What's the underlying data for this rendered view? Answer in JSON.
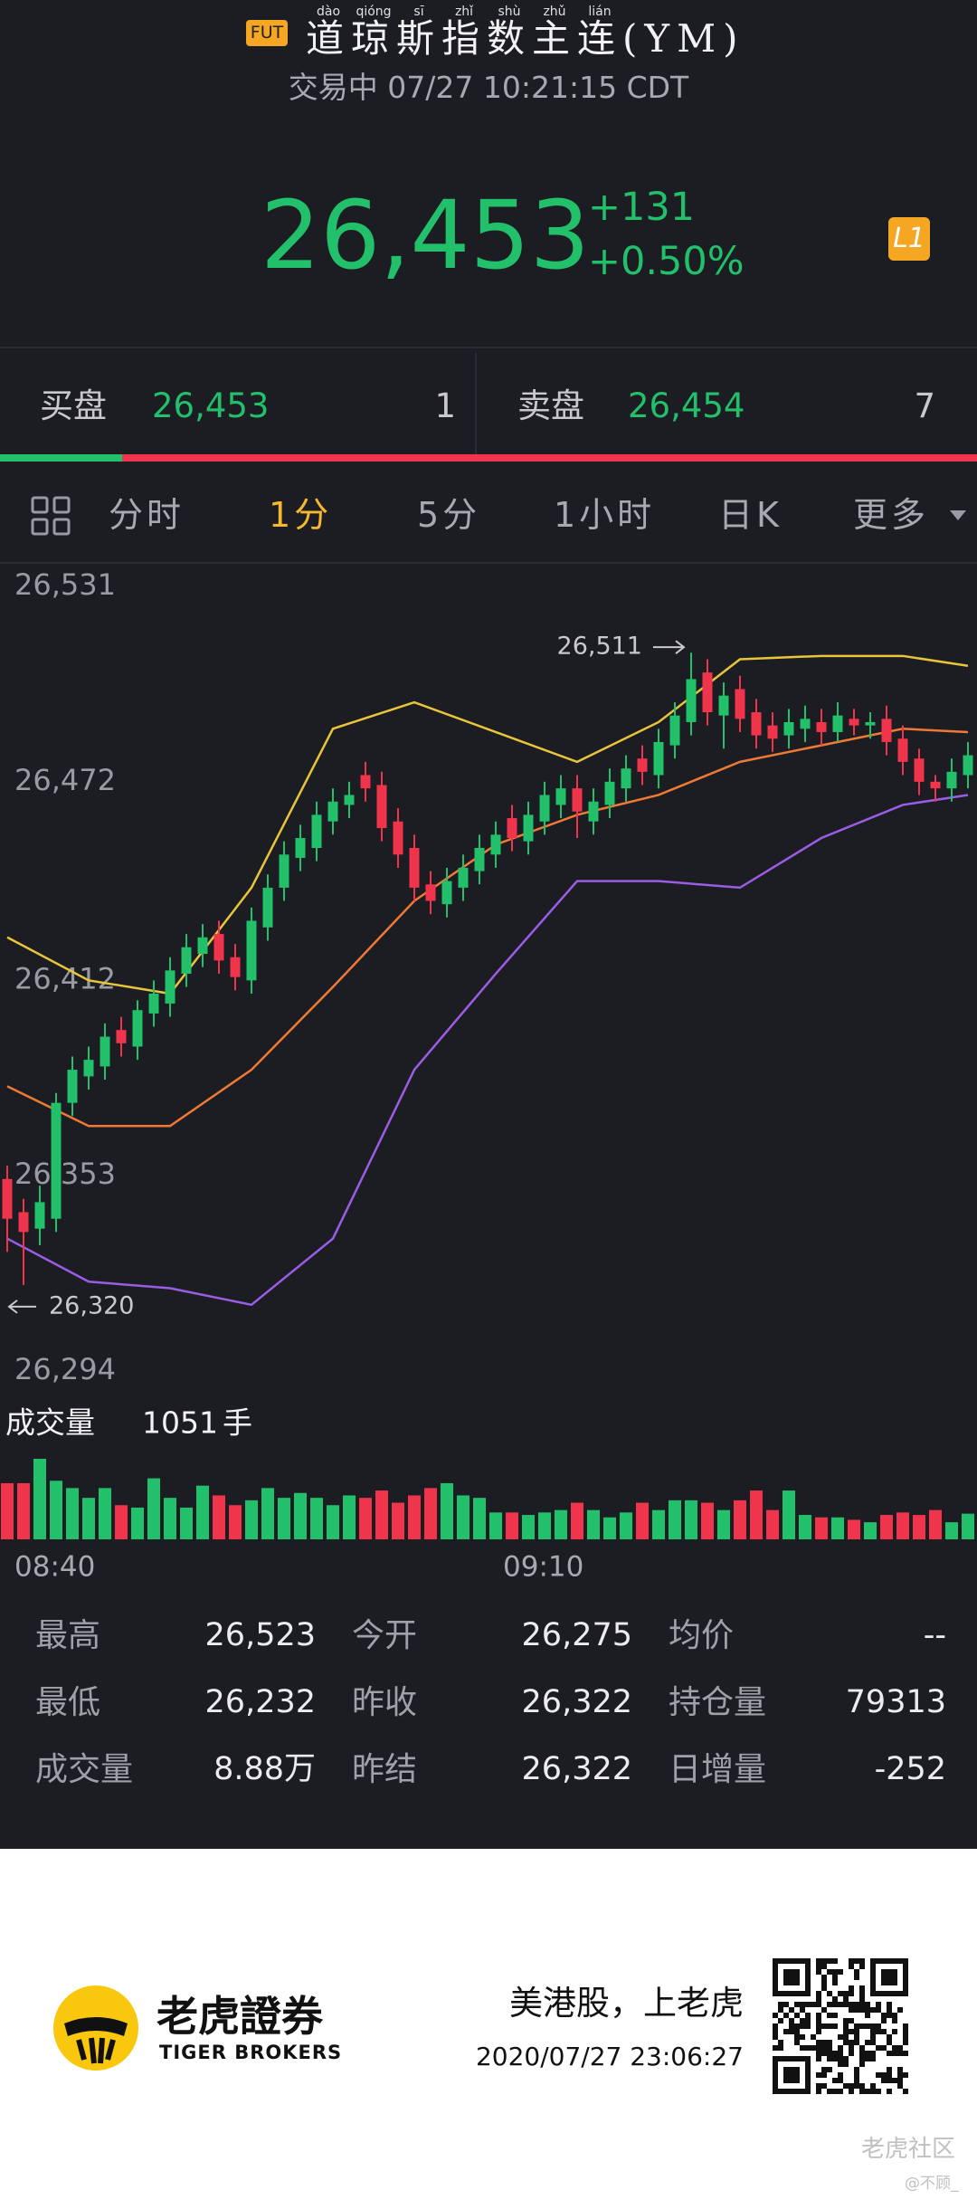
{
  "header": {
    "badge": "FUT",
    "title": "道琼斯指数主连(YM)",
    "pinyin": [
      "dào",
      "qióng",
      "sī",
      "zhǐ",
      "shù",
      "zhǔ",
      "lián"
    ],
    "status": "交易中 07/27 10:21:15 CDT"
  },
  "quote": {
    "price": "26,453",
    "change": "+131",
    "change_pct": "+0.50%",
    "level": "L1"
  },
  "book": {
    "bid_label": "买盘",
    "bid": "26,453",
    "bid_size": 1,
    "ask_label": "卖盘",
    "ask": "26,454",
    "ask_size": 7
  },
  "tabs": [
    "分时",
    "1分",
    "5分",
    "1小时",
    "日K",
    "更多"
  ],
  "active_tab": 1,
  "chart_data": {
    "type": "candlestick",
    "categories": [
      "08:40",
      null,
      null,
      null,
      null,
      null,
      null,
      null,
      null,
      null,
      null,
      null,
      null,
      null,
      null,
      null,
      null,
      null,
      null,
      null,
      null,
      null,
      null,
      null,
      null,
      null,
      null,
      null,
      null,
      null,
      "09:10",
      null,
      null,
      null,
      null,
      null,
      null,
      null,
      null,
      null,
      null,
      null,
      null,
      null,
      null,
      null,
      null,
      null,
      null,
      null,
      null,
      null,
      null,
      null,
      null,
      null,
      null,
      null,
      null,
      null
    ],
    "open": [
      26352,
      26342,
      26337,
      26340,
      26375,
      26383,
      26386,
      26397,
      26392,
      26402,
      26405,
      26414,
      26420,
      26426,
      26419,
      26412,
      26428,
      26440,
      26449,
      26452,
      26460,
      26465,
      26474,
      26471,
      26460,
      26452,
      26441,
      26435,
      26440,
      26445,
      26450,
      26461,
      26454,
      26460,
      26465,
      26470,
      26460,
      26465,
      26470,
      26479,
      26474,
      26483,
      26490,
      26505,
      26492,
      26500,
      26493,
      26489,
      26486,
      26488,
      26490,
      26487,
      26491,
      26489,
      26491,
      26485,
      26479,
      26472,
      26470,
      26474
    ],
    "high": [
      26356,
      26346,
      26350,
      26378,
      26389,
      26392,
      26399,
      26401,
      26406,
      26412,
      26419,
      26426,
      26429,
      26430,
      26423,
      26434,
      26444,
      26454,
      26459,
      26466,
      26470,
      26472,
      26478,
      26475,
      26464,
      26456,
      26445,
      26446,
      26450,
      26456,
      26460,
      26465,
      26466,
      26472,
      26474,
      26474,
      26470,
      26476,
      26480,
      26483,
      26488,
      26496,
      26511,
      26509,
      26502,
      26504,
      26497,
      26493,
      26494,
      26495,
      26494,
      26496,
      26494,
      26493,
      26495,
      26489,
      26482,
      26474,
      26479,
      26484
    ],
    "low": [
      26330,
      26320,
      26332,
      26336,
      26371,
      26379,
      26382,
      26389,
      26388,
      26398,
      26401,
      26410,
      26416,
      26414,
      26409,
      26408,
      26424,
      26436,
      26445,
      26448,
      26456,
      26461,
      26466,
      26454,
      26446,
      26436,
      26432,
      26431,
      26436,
      26441,
      26446,
      26451,
      26450,
      26456,
      26461,
      26455,
      26456,
      26461,
      26466,
      26471,
      26470,
      26479,
      26486,
      26489,
      26482,
      26487,
      26482,
      26481,
      26482,
      26484,
      26483,
      26484,
      26486,
      26485,
      26480,
      26474,
      26468,
      26466,
      26466,
      26470
    ],
    "close": [
      26340,
      26336,
      26345,
      26375,
      26385,
      26388,
      26395,
      26393,
      26403,
      26408,
      26415,
      26422,
      26425,
      26418,
      26413,
      26430,
      26440,
      26450,
      26455,
      26462,
      26466,
      26468,
      26470,
      26458,
      26450,
      26440,
      26436,
      26442,
      26446,
      26452,
      26456,
      26455,
      26462,
      26468,
      26470,
      26463,
      26466,
      26472,
      26476,
      26475,
      26484,
      26492,
      26503,
      26493,
      26498,
      26491,
      26486,
      26485,
      26490,
      26491,
      26487,
      26492,
      26489,
      26490,
      26484,
      26478,
      26472,
      26470,
      26475,
      26480
    ],
    "up_color": "#22c06a",
    "down_color": "#f0344c",
    "ylim": [
      26294,
      26531
    ],
    "yticks": [
      {
        "value": 26531,
        "label": "26,531"
      },
      {
        "value": 26472,
        "label": "26,472"
      },
      {
        "value": 26412,
        "label": "26,412"
      },
      {
        "value": 26353,
        "label": "26,353"
      },
      {
        "value": 26294,
        "label": "26,294"
      }
    ],
    "band_x": [
      0,
      5,
      10,
      15,
      20,
      25,
      30,
      35,
      40,
      45,
      50,
      55,
      59
    ],
    "bands": [
      {
        "color": "#e8c53a",
        "values": [
          26425,
          26412,
          26408,
          26440,
          26488,
          26496,
          26487,
          26478,
          26490,
          26509,
          26510,
          26510,
          26507
        ]
      },
      {
        "color": "#f07a35",
        "values": [
          26380,
          26368,
          26368,
          26385,
          26410,
          26436,
          26453,
          26462,
          26468,
          26478,
          26483,
          26488,
          26487
        ]
      },
      {
        "color": "#9b5de5",
        "values": [
          26334,
          26321,
          26319,
          26314,
          26334,
          26385,
          26414,
          26442,
          26442,
          26440,
          26455,
          26465,
          26468
        ]
      }
    ],
    "annotations": [
      {
        "text": "26,511",
        "value": 26511,
        "side": "high"
      },
      {
        "text": "26,320",
        "value": 26320,
        "side": "low"
      }
    ],
    "volume": {
      "label": "成交量",
      "current": 1051,
      "unit": "手",
      "values": [
        2300,
        2300,
        3300,
        2400,
        2100,
        1700,
        2100,
        1400,
        1300,
        2500,
        1700,
        1300,
        2200,
        1800,
        1400,
        1600,
        2100,
        1700,
        1900,
        1700,
        1400,
        1800,
        1700,
        2000,
        1500,
        1800,
        2100,
        2300,
        1800,
        1700,
        1100,
        1100,
        1000,
        1100,
        1200,
        1500,
        1200,
        900,
        1100,
        1500,
        1200,
        1600,
        1600,
        1500,
        1200,
        1600,
        2000,
        1200,
        2000,
        1000,
        900,
        900,
        800,
        700,
        1000,
        1100,
        1000,
        1200,
        700,
        1051
      ]
    }
  },
  "stats": [
    [
      "最高",
      "26,523",
      "今开",
      "26,275",
      "均价",
      "--"
    ],
    [
      "最低",
      "26,232",
      "昨收",
      "26,322",
      "持仓量",
      "79313"
    ],
    [
      "成交量",
      "8.88万",
      "昨结",
      "26,322",
      "日增量",
      "-252"
    ]
  ],
  "footer": {
    "brand": "老虎證券",
    "brand_en": "TIGER BROKERS",
    "slogan": "美港股，上老虎",
    "timestamp": "2020/07/27 23:06:27",
    "watermark": "老虎社区",
    "user": "@不顾_"
  }
}
